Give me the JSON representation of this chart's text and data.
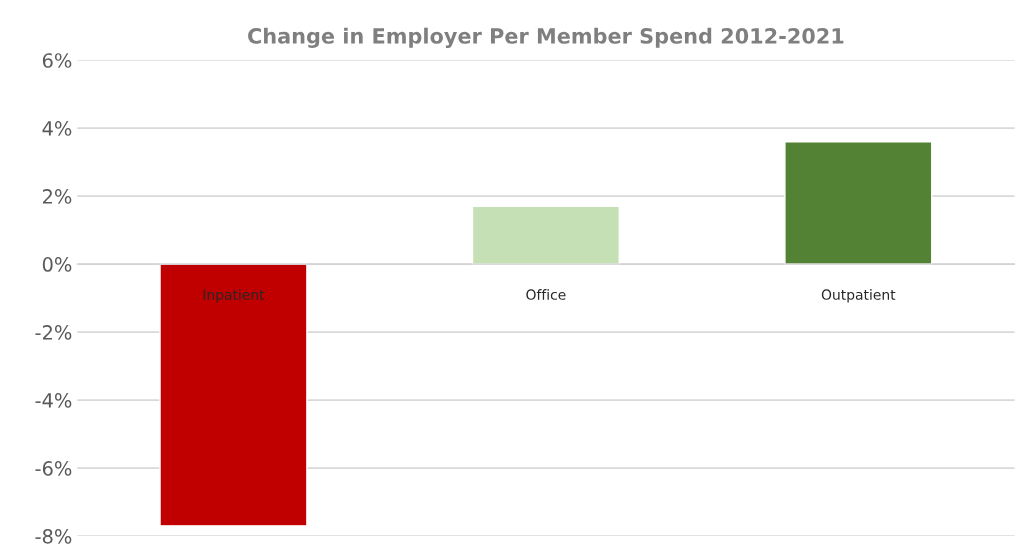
{
  "chart_data": {
    "type": "bar",
    "title": "Change in Employer Per Member Spend 2012-2021",
    "categories": [
      "Inpatient",
      "Office",
      "Outpatient"
    ],
    "values": [
      -7.7,
      1.7,
      3.6
    ],
    "colors": [
      "#c00000",
      "#c5e0b4",
      "#548235"
    ],
    "ylim": [
      -8,
      6
    ],
    "yticks": [
      {
        "value": -8,
        "label": "-8%"
      },
      {
        "value": -6,
        "label": "-6%"
      },
      {
        "value": -4,
        "label": "-4%"
      },
      {
        "value": -2,
        "label": "-2%"
      },
      {
        "value": 0,
        "label": "0%"
      },
      {
        "value": 2,
        "label": "2%"
      },
      {
        "value": 4,
        "label": "4%"
      },
      {
        "value": 6,
        "label": "6%"
      }
    ],
    "grid": "y",
    "legend": false
  }
}
